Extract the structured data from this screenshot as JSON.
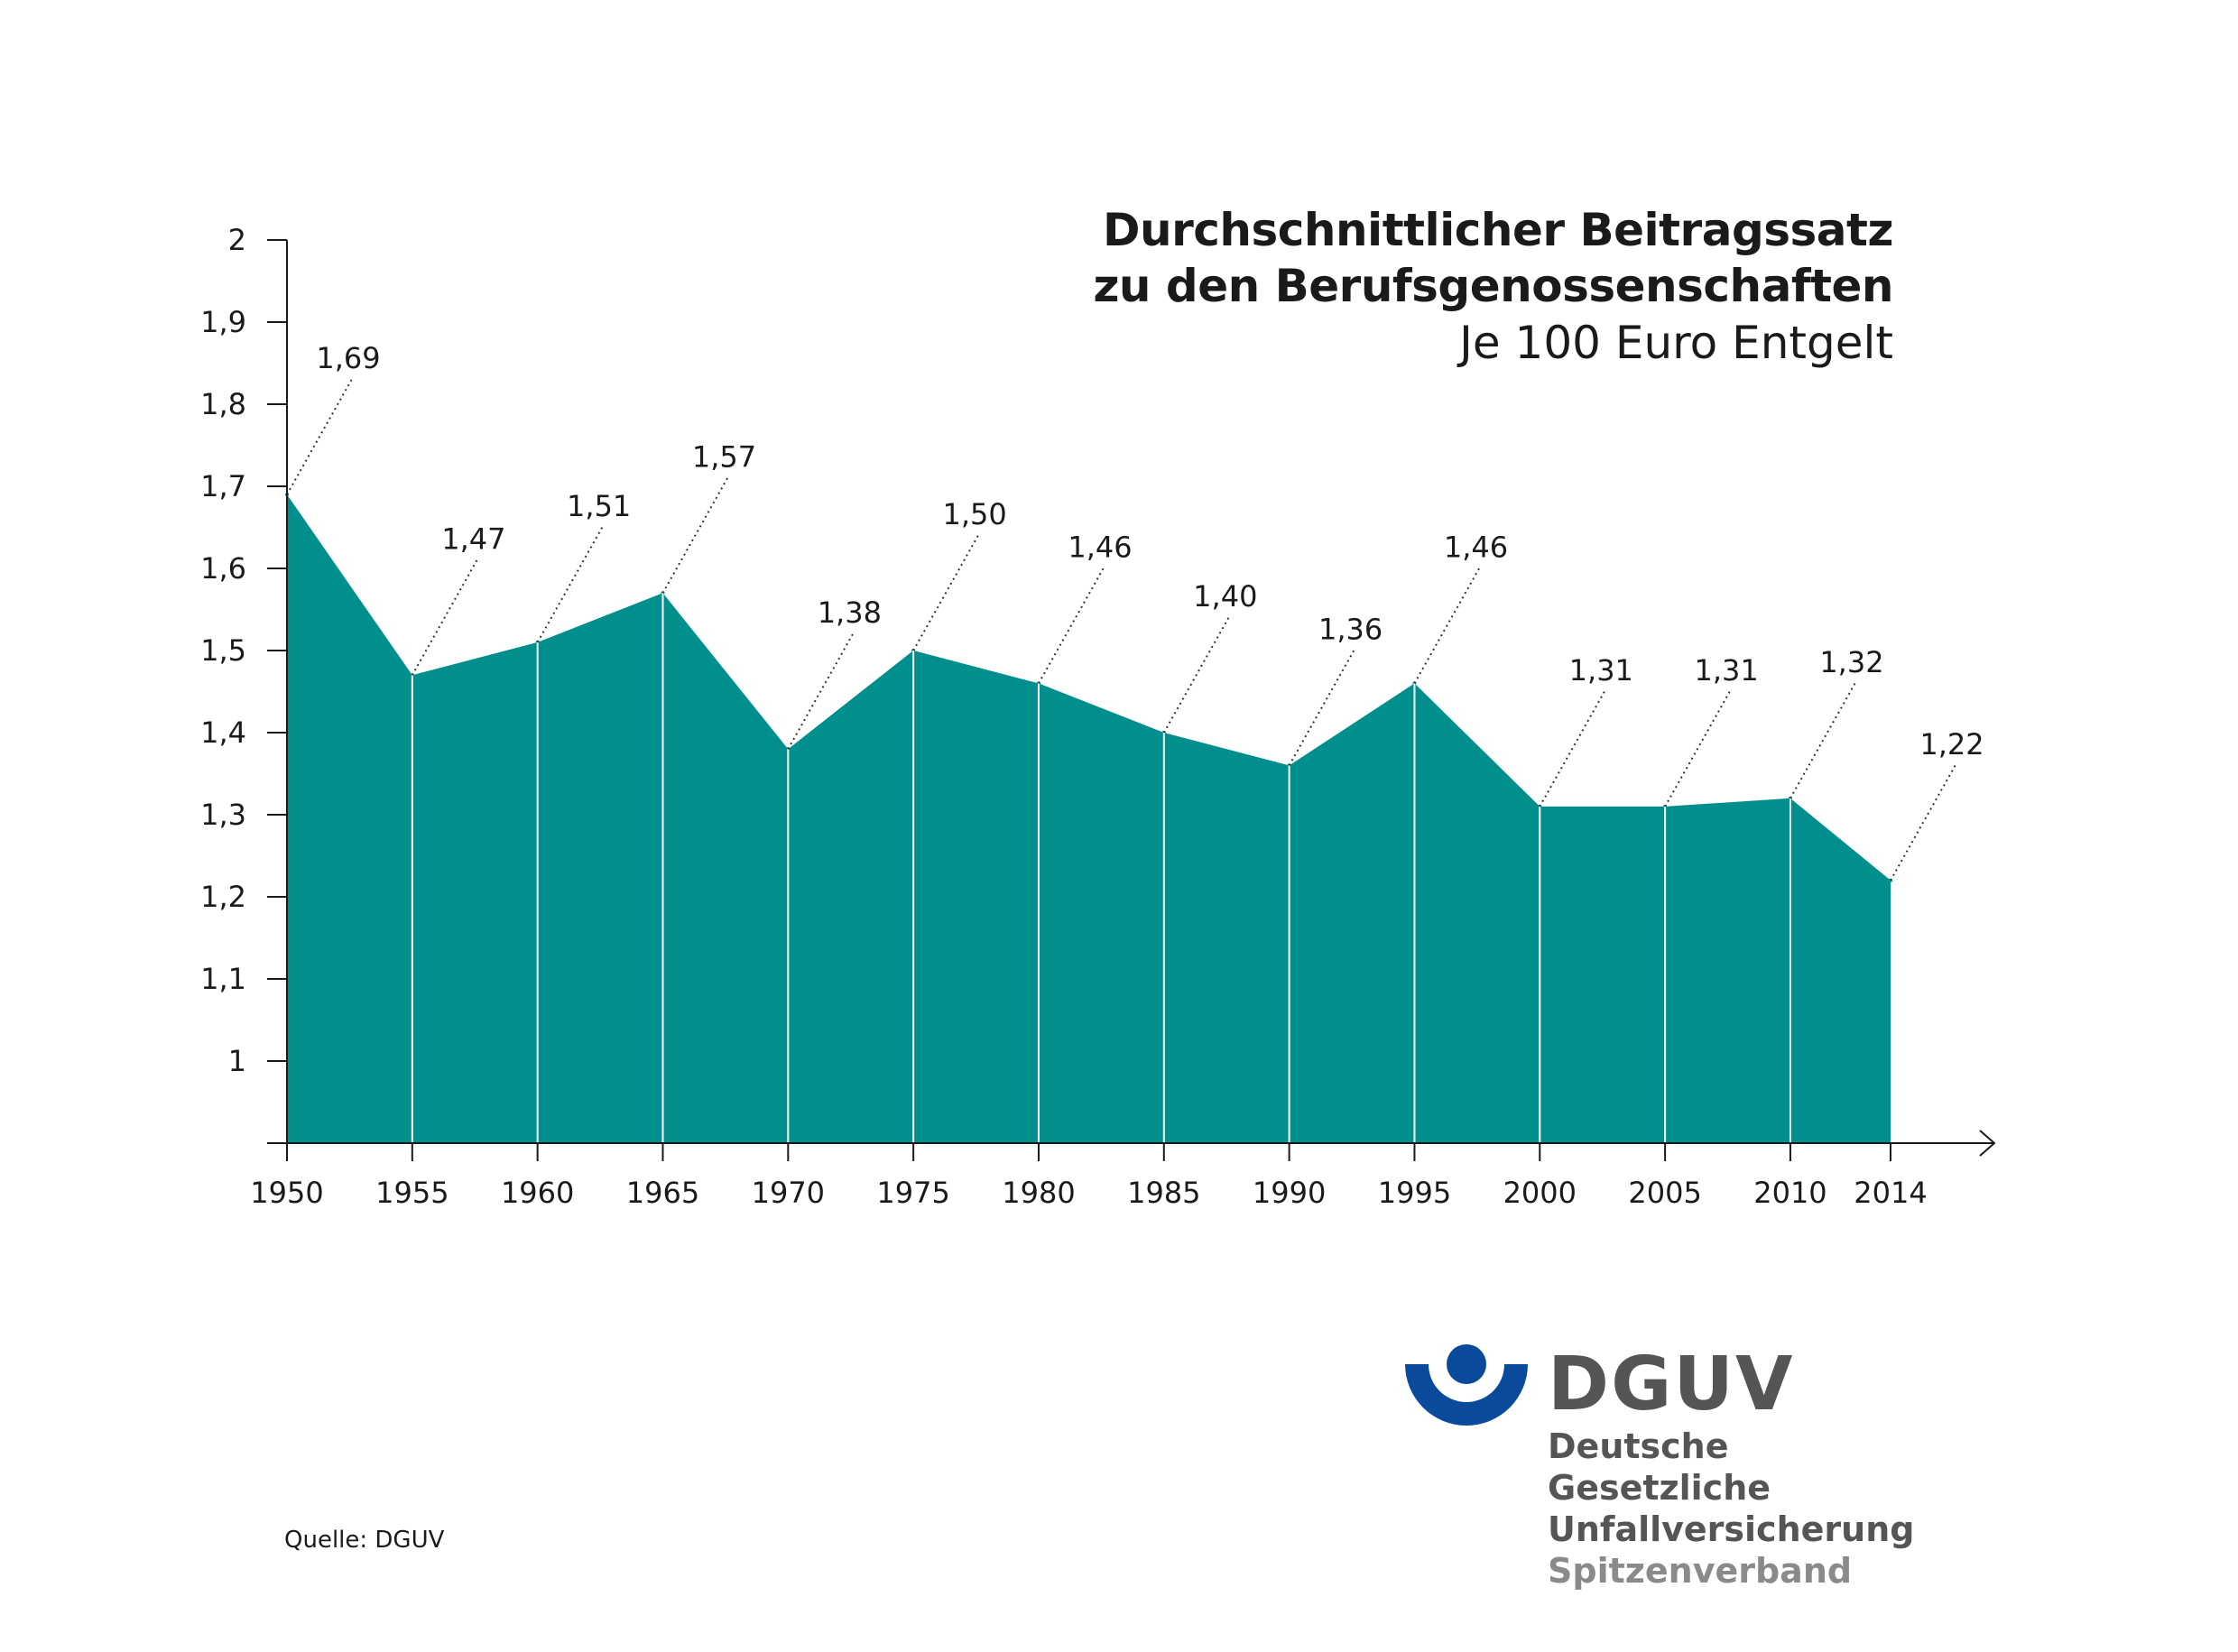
{
  "title_line1": "Durchschnittlicher Beitragssatz",
  "title_line2": "zu den Berufsgenossenschaften",
  "subtitle": "Je 100 Euro Entgelt",
  "source": "Quelle: DGUV",
  "logo": {
    "mark": "DGUV",
    "line1": "Deutsche Gesetzliche",
    "line2": "Unfallversicherung",
    "line3": "Spitzenverband",
    "color_blue": "#0a4a9a",
    "color_gray": "#555555"
  },
  "colors": {
    "area": "#008f8c",
    "divider": "#ffffff",
    "axis": "#1a1a1a"
  },
  "chart_data": {
    "type": "area",
    "x": [
      1950,
      1955,
      1960,
      1965,
      1970,
      1975,
      1980,
      1985,
      1990,
      1995,
      2000,
      2005,
      2010,
      2014
    ],
    "x_tick_labels": [
      "1950",
      "1955",
      "1960",
      "1965",
      "1970",
      "1975",
      "1980",
      "1985",
      "1990",
      "1995",
      "2000",
      "2005",
      "2010",
      "2014"
    ],
    "values": [
      1.69,
      1.47,
      1.51,
      1.57,
      1.38,
      1.5,
      1.46,
      1.4,
      1.36,
      1.46,
      1.31,
      1.31,
      1.32,
      1.22
    ],
    "data_labels": [
      "1,69",
      "1,47",
      "1,51",
      "1,57",
      "1,38",
      "1,50",
      "1,46",
      "1,40",
      "1,36",
      "1,46",
      "1,31",
      "1,31",
      "1,32",
      "1,22"
    ],
    "y_ticks": [
      1,
      1.1,
      1.2,
      1.3,
      1.4,
      1.5,
      1.6,
      1.7,
      1.8,
      1.9,
      2
    ],
    "y_tick_labels": [
      "1",
      "1,1",
      "1,2",
      "1,3",
      "1,4",
      "1,5",
      "1,6",
      "1,7",
      "1,8",
      "1,9",
      "2"
    ],
    "ylim": [
      0.9,
      2
    ],
    "title": "Durchschnittlicher Beitragssatz zu den Berufsgenossenschaften",
    "subtitle": "Je 100 Euro Entgelt",
    "legend": "none",
    "grid": false
  }
}
